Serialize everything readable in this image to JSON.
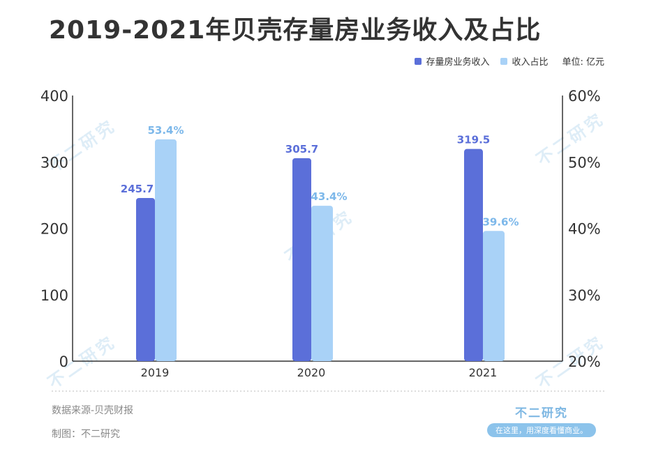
{
  "title": "2019-2021年贝壳存量房业务收入及占比",
  "legend": {
    "series1": "存量房业务收入",
    "series2": "收入占比",
    "unit": "单位: 亿元"
  },
  "colors": {
    "series1": "#5b6fd9",
    "series2": "#a9d2f7",
    "axis": "#333333"
  },
  "chart_data": {
    "type": "bar",
    "categories": [
      "2019",
      "2020",
      "2021"
    ],
    "series": [
      {
        "name": "存量房业务收入",
        "values": [
          245.7,
          305.7,
          319.5
        ],
        "axis": "left",
        "labels": [
          "245.7",
          "305.7",
          "319.5"
        ]
      },
      {
        "name": "收入占比",
        "values": [
          53.4,
          43.4,
          39.6
        ],
        "axis": "right",
        "labels": [
          "53.4%",
          "43.4%",
          "39.6%"
        ]
      }
    ],
    "left_axis": {
      "ylim": [
        0,
        400
      ],
      "ticks": [
        "0",
        "100",
        "200",
        "300",
        "400"
      ]
    },
    "right_axis": {
      "ylim": [
        20,
        60
      ],
      "ticks": [
        "20%",
        "30%",
        "40%",
        "50%",
        "60%"
      ]
    }
  },
  "footer": {
    "source": "数据来源-贝壳财报",
    "maker": "制图：不二研究"
  },
  "brand": {
    "name": "不二研究",
    "slogan": "在这里，用深度看懂商业。"
  },
  "watermark": "不二研究"
}
